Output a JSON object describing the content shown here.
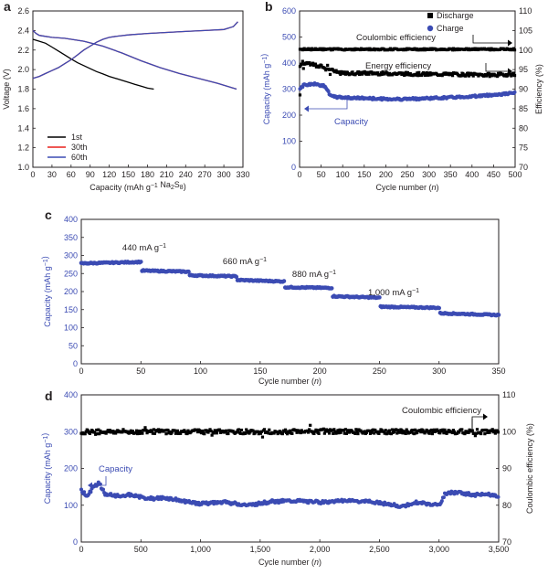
{
  "panels": {
    "a": "a",
    "b": "b",
    "c": "c",
    "d": "d"
  },
  "chart_data": [
    {
      "panel": "a",
      "type": "line",
      "xlabel": "Capacity (mAh g−1 Na2S8)",
      "ylabel": "Voltage (V)",
      "xlim": [
        0,
        330
      ],
      "ylim": [
        1.0,
        2.6
      ],
      "xticks": [
        "0",
        "30",
        "60",
        "90",
        "120",
        "150",
        "180",
        "210",
        "240",
        "270",
        "300",
        "330"
      ],
      "yticks": [
        "1.0",
        "1.2",
        "1.4",
        "1.6",
        "1.8",
        "2.0",
        "2.2",
        "2.4",
        "2.6"
      ],
      "legend_position": "lower-left",
      "series": [
        {
          "name": "1st",
          "color": "#000000",
          "discharge": {
            "x": [
              0,
              10,
              20,
              30,
              40,
              50,
              60,
              70,
              80,
              90,
              100,
              110,
              120,
              130,
              140,
              150,
              160,
              170,
              180,
              190
            ],
            "y": [
              2.31,
              2.29,
              2.27,
              2.23,
              2.19,
              2.15,
              2.11,
              2.07,
              2.04,
              2.01,
              1.98,
              1.955,
              1.93,
              1.91,
              1.89,
              1.87,
              1.85,
              1.83,
              1.81,
              1.8
            ]
          },
          "charge": {
            "x": [],
            "y": []
          }
        },
        {
          "name": "30th",
          "color": "#e8201c",
          "discharge": {
            "x": [
              0,
              5,
              10,
              20,
              30,
              50,
              80,
              110,
              140,
              170,
              200,
              230,
              260,
              290,
              310,
              320
            ],
            "y": [
              2.4,
              2.37,
              2.35,
              2.34,
              2.33,
              2.32,
              2.29,
              2.24,
              2.17,
              2.09,
              2.02,
              1.96,
              1.91,
              1.86,
              1.82,
              1.8
            ]
          },
          "charge": {
            "x": [
              0,
              10,
              20,
              30,
              40,
              50,
              60,
              70,
              80,
              90,
              100,
              110,
              120,
              130,
              150,
              180,
              210,
              240,
              270,
              300,
              315,
              322
            ],
            "y": [
              1.91,
              1.93,
              1.96,
              1.99,
              2.02,
              2.06,
              2.1,
              2.15,
              2.2,
              2.24,
              2.28,
              2.31,
              2.33,
              2.34,
              2.355,
              2.37,
              2.38,
              2.39,
              2.4,
              2.41,
              2.44,
              2.49
            ]
          }
        },
        {
          "name": "60th",
          "color": "#3b4bb3",
          "discharge": {
            "x": [
              0,
              5,
              10,
              20,
              30,
              50,
              80,
              110,
              140,
              170,
              200,
              230,
              260,
              290,
              310,
              320
            ],
            "y": [
              2.4,
              2.37,
              2.35,
              2.34,
              2.33,
              2.32,
              2.29,
              2.24,
              2.17,
              2.09,
              2.02,
              1.96,
              1.91,
              1.86,
              1.82,
              1.8
            ]
          },
          "charge": {
            "x": [
              0,
              10,
              20,
              30,
              40,
              50,
              60,
              70,
              80,
              90,
              100,
              110,
              120,
              130,
              150,
              180,
              210,
              240,
              270,
              300,
              315,
              322
            ],
            "y": [
              1.91,
              1.93,
              1.96,
              1.99,
              2.02,
              2.06,
              2.1,
              2.15,
              2.2,
              2.24,
              2.28,
              2.31,
              2.33,
              2.34,
              2.355,
              2.37,
              2.38,
              2.39,
              2.4,
              2.41,
              2.44,
              2.49
            ]
          }
        }
      ]
    },
    {
      "panel": "b",
      "type": "scatter",
      "xlabel": "Cycle number (n)",
      "ylabel": "Capacity (mAh g−1)",
      "ylabel2": "Efficiency (%)",
      "xlim": [
        0,
        500
      ],
      "ylim": [
        0,
        600
      ],
      "ylim2": [
        70,
        110
      ],
      "xticks": [
        "0",
        "50",
        "100",
        "150",
        "200",
        "250",
        "300",
        "350",
        "400",
        "450",
        "500"
      ],
      "yticks": [
        "0",
        "100",
        "200",
        "300",
        "400",
        "500",
        "600"
      ],
      "yticks2": [
        "70",
        "75",
        "80",
        "85",
        "90",
        "95",
        "100",
        "105",
        "110"
      ],
      "legend_position": "top-right",
      "legend": [
        {
          "name": "Discharge",
          "color": "#000000"
        },
        {
          "name": "Charge",
          "color": "#3b4bb3"
        }
      ],
      "annotations": [
        "Coulombic efficiency",
        "Energy efficiency",
        "Capacity"
      ],
      "series": [
        {
          "name": "Discharge",
          "color": "#000000",
          "axis": "right",
          "x": [
            0,
            500
          ],
          "y": [
            100.2,
            100.2
          ],
          "note": "coulombic efficiency"
        },
        {
          "name": "Discharge",
          "color": "#000000",
          "axis": "right",
          "x": [
            0,
            20,
            40,
            60,
            80,
            100,
            150,
            200,
            250,
            300,
            350,
            400,
            450,
            500
          ],
          "y": [
            96.5,
            96.8,
            96.0,
            95.7,
            94.5,
            94.0,
            94.1,
            94.0,
            93.9,
            93.8,
            93.8,
            93.7,
            93.6,
            93.8
          ],
          "note": "energy efficiency"
        },
        {
          "name": "Charge",
          "color": "#3b4bb3",
          "axis": "left",
          "x": [
            0,
            10,
            20,
            30,
            40,
            50,
            60,
            70,
            80,
            100,
            150,
            200,
            250,
            300,
            350,
            400,
            450,
            500
          ],
          "y": [
            300,
            315,
            318,
            320,
            318,
            315,
            312,
            280,
            270,
            268,
            265,
            262,
            262,
            265,
            268,
            272,
            278,
            285
          ]
        }
      ]
    },
    {
      "panel": "c",
      "type": "scatter",
      "xlabel": "Cycle number (n)",
      "ylabel": "Capacity (mAh g−1)",
      "xlim": [
        0,
        350
      ],
      "ylim": [
        0,
        400
      ],
      "xticks": [
        "0",
        "50",
        "100",
        "150",
        "200",
        "250",
        "300",
        "350"
      ],
      "yticks": [
        "0",
        "50",
        "100",
        "150",
        "200",
        "250",
        "300",
        "350",
        "400"
      ],
      "annotations": [
        "440 mA g−1",
        "660 mA g−1",
        "880 mA g−1",
        "1,000 mA g−1"
      ],
      "series": [
        {
          "name": "Charge",
          "color": "#3b4bb3",
          "segments": [
            {
              "x": [
                0,
                50
              ],
              "y": [
                278,
                282
              ]
            },
            {
              "x": [
                51,
                90
              ],
              "y": [
                258,
                255
              ]
            },
            {
              "x": [
                91,
                130
              ],
              "y": [
                245,
                242
              ]
            },
            {
              "x": [
                131,
                170
              ],
              "y": [
                232,
                228
              ]
            },
            {
              "x": [
                171,
                210
              ],
              "y": [
                212,
                210
              ]
            },
            {
              "x": [
                211,
                250
              ],
              "y": [
                187,
                183
              ]
            },
            {
              "x": [
                251,
                300
              ],
              "y": [
                158,
                155
              ]
            },
            {
              "x": [
                301,
                350
              ],
              "y": [
                140,
                135
              ]
            }
          ]
        }
      ]
    },
    {
      "panel": "d",
      "type": "scatter",
      "xlabel": "Cycle number (n)",
      "ylabel": "Capacity (mAh g−1)",
      "ylabel2": "Coulombic efficiency (%)",
      "xlim": [
        0,
        3500
      ],
      "ylim": [
        0,
        400
      ],
      "ylim2": [
        70,
        110
      ],
      "xticks": [
        "0",
        "500",
        "1,000",
        "1,500",
        "2,000",
        "2,500",
        "3,000",
        "3,500"
      ],
      "yticks": [
        "0",
        "100",
        "200",
        "300",
        "400"
      ],
      "yticks2": [
        "70",
        "80",
        "90",
        "100",
        "110"
      ],
      "annotations": [
        "Coulombic efficiency",
        "Capacity"
      ],
      "series": [
        {
          "name": "Discharge",
          "color": "#000000",
          "axis": "right",
          "x": [
            0,
            3500
          ],
          "y": [
            100.0,
            100.0
          ],
          "note": "coulombic efficiency"
        },
        {
          "name": "Charge",
          "color": "#3b4bb3",
          "axis": "left",
          "x": [
            0,
            50,
            100,
            150,
            200,
            300,
            400,
            500,
            600,
            700,
            800,
            900,
            1000,
            1200,
            1400,
            1600,
            1800,
            2000,
            2200,
            2400,
            2600,
            2700,
            2800,
            3000,
            3050,
            3100,
            3200,
            3300,
            3400,
            3500
          ],
          "y": [
            140,
            125,
            150,
            160,
            130,
            125,
            128,
            122,
            118,
            120,
            115,
            108,
            104,
            108,
            100,
            110,
            112,
            108,
            112,
            110,
            102,
            96,
            108,
            100,
            130,
            135,
            132,
            128,
            130,
            125
          ]
        }
      ]
    }
  ]
}
